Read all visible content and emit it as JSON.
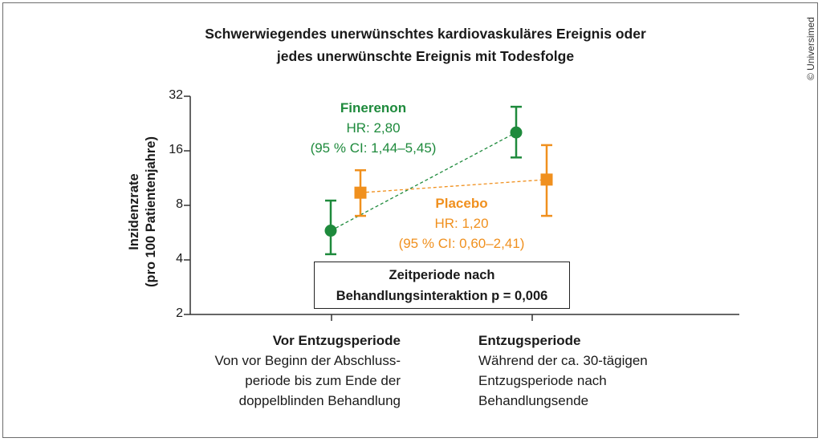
{
  "chart_data": {
    "type": "scatter",
    "title_line1": "Schwerwiegendes unerwünschtes kardiovaskuläres Ereignis oder",
    "title_line2": "jedes unerwünschte Ereignis mit Todesfolge",
    "ylabel_line1": "Inzidenzrate",
    "ylabel_line2": "(pro 100 Patientenjahre)",
    "yscale": "log2",
    "ylim": [
      2,
      32
    ],
    "yticks": [
      "2",
      "4",
      "8",
      "16",
      "32"
    ],
    "categories": [
      {
        "heading": "Vor Entzugsperiode",
        "lines": [
          "Von vor Beginn der Abschluss-",
          "periode bis zum Ende der",
          "doppelblinden Behandlung"
        ]
      },
      {
        "heading": "Entzugsperiode",
        "lines": [
          "Während der ca. 30-tägigen",
          "Entzugsperiode nach",
          "Behandlungsende"
        ]
      }
    ],
    "series": [
      {
        "name": "Finerenon",
        "color": "#1e8a3c",
        "marker": "circle",
        "points": [
          {
            "value": 5.8,
            "lower": 4.3,
            "upper": 8.5
          },
          {
            "value": 20.2,
            "lower": 14.7,
            "upper": 28.0
          }
        ],
        "annotation": [
          "HR: 2,80",
          "(95 % CI: 1,44–5,45)"
        ]
      },
      {
        "name": "Placebo",
        "color": "#f0901e",
        "marker": "square",
        "points": [
          {
            "value": 9.4,
            "lower": 7.0,
            "upper": 12.5
          },
          {
            "value": 11.1,
            "lower": 7.0,
            "upper": 17.2
          }
        ],
        "annotation": [
          "HR: 1,20",
          "(95 % CI: 0,60–2,41)"
        ]
      }
    ],
    "interaction_box": {
      "line1": "Zeitperiode nach",
      "line2_prefix": "Behandlungsinteraktion p = ",
      "line2_value": "0,006"
    },
    "copyright": "© Universimed",
    "grid": false
  }
}
